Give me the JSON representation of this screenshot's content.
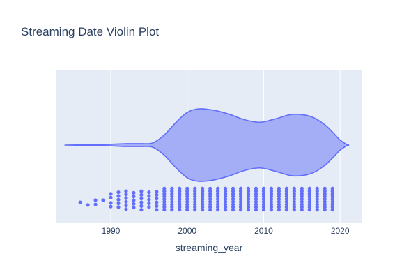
{
  "chart_data": {
    "type": "violin",
    "title": "Streaming Date Violin Plot",
    "xlabel": "streaming_year",
    "ylabel": "",
    "xlim": [
      1982.8,
      2022.9
    ],
    "x_ticks": [
      1990,
      2000,
      2010,
      2020
    ],
    "grid": true,
    "legend": "none",
    "colors": {
      "plot_background": "#e5ecf6",
      "grid": "#ffffff",
      "violin_fill": "#a3aef7",
      "violin_line": "#636efa",
      "points": "#636efa",
      "text": "#2a3f5f"
    },
    "violin": {
      "x_min": 1984,
      "x_max": 2021,
      "density_profile": [
        {
          "x": 1984.0,
          "d": 0.0
        },
        {
          "x": 1988.0,
          "d": 0.01
        },
        {
          "x": 1990.0,
          "d": 0.02
        },
        {
          "x": 1992.0,
          "d": 0.04
        },
        {
          "x": 1994.0,
          "d": 0.04
        },
        {
          "x": 1995.5,
          "d": 0.06
        },
        {
          "x": 1997.0,
          "d": 0.28
        },
        {
          "x": 1998.5,
          "d": 0.62
        },
        {
          "x": 2000.0,
          "d": 0.9
        },
        {
          "x": 2001.5,
          "d": 1.0
        },
        {
          "x": 2003.5,
          "d": 0.96
        },
        {
          "x": 2005.5,
          "d": 0.85
        },
        {
          "x": 2007.5,
          "d": 0.7
        },
        {
          "x": 2009.5,
          "d": 0.63
        },
        {
          "x": 2011.5,
          "d": 0.72
        },
        {
          "x": 2013.5,
          "d": 0.84
        },
        {
          "x": 2015.0,
          "d": 0.84
        },
        {
          "x": 2016.5,
          "d": 0.76
        },
        {
          "x": 2018.0,
          "d": 0.56
        },
        {
          "x": 2019.0,
          "d": 0.36
        },
        {
          "x": 2020.0,
          "d": 0.14
        },
        {
          "x": 2021.0,
          "d": 0.0
        }
      ]
    },
    "points": [
      {
        "year": 1986,
        "rows": [
          0.4
        ]
      },
      {
        "year": 1987,
        "rows": [
          0.9
        ]
      },
      {
        "year": 1988,
        "rows": [
          0.0,
          0.8
        ]
      },
      {
        "year": 1989,
        "rows": [
          0.0
        ]
      },
      {
        "year": 1990,
        "rows": [
          -1.2,
          -0.5,
          0.5,
          1.2
        ]
      },
      {
        "year": 1991,
        "rows": [
          -1.5,
          -0.8,
          -0.1,
          0.6,
          1.3
        ]
      },
      {
        "year": 1992,
        "rows": [
          -1.7,
          -1.1,
          -0.4,
          0.3,
          1.0,
          1.7
        ]
      },
      {
        "year": 1993,
        "rows": [
          -1.4,
          -0.7,
          0.0,
          0.7,
          1.4
        ]
      },
      {
        "year": 1994,
        "rows": [
          -1.7,
          -1.0,
          -0.3,
          0.4,
          1.1,
          1.8
        ]
      },
      {
        "year": 1995,
        "rows": [
          -1.5,
          -0.8,
          -0.1,
          0.6,
          1.3
        ]
      },
      {
        "year": 1996,
        "rows": [
          -1.6,
          -1.0,
          -0.3,
          0.4,
          1.1,
          1.8
        ]
      },
      {
        "year": 1997,
        "rows": "dense"
      },
      {
        "year": 1998,
        "rows": "dense"
      },
      {
        "year": 1999,
        "rows": "dense"
      },
      {
        "year": 2000,
        "rows": "dense"
      },
      {
        "year": 2001,
        "rows": "dense"
      },
      {
        "year": 2002,
        "rows": "dense"
      },
      {
        "year": 2003,
        "rows": "dense"
      },
      {
        "year": 2004,
        "rows": "dense"
      },
      {
        "year": 2005,
        "rows": "dense"
      },
      {
        "year": 2006,
        "rows": "dense"
      },
      {
        "year": 2007,
        "rows": "dense"
      },
      {
        "year": 2008,
        "rows": "dense"
      },
      {
        "year": 2009,
        "rows": "dense"
      },
      {
        "year": 2010,
        "rows": "dense"
      },
      {
        "year": 2011,
        "rows": "dense"
      },
      {
        "year": 2012,
        "rows": "dense"
      },
      {
        "year": 2013,
        "rows": "dense"
      },
      {
        "year": 2014,
        "rows": "dense"
      },
      {
        "year": 2015,
        "rows": "dense"
      },
      {
        "year": 2016,
        "rows": "dense"
      },
      {
        "year": 2017,
        "rows": "dense"
      },
      {
        "year": 2018,
        "rows": "dense"
      },
      {
        "year": 2019,
        "rows": "dense"
      }
    ]
  }
}
